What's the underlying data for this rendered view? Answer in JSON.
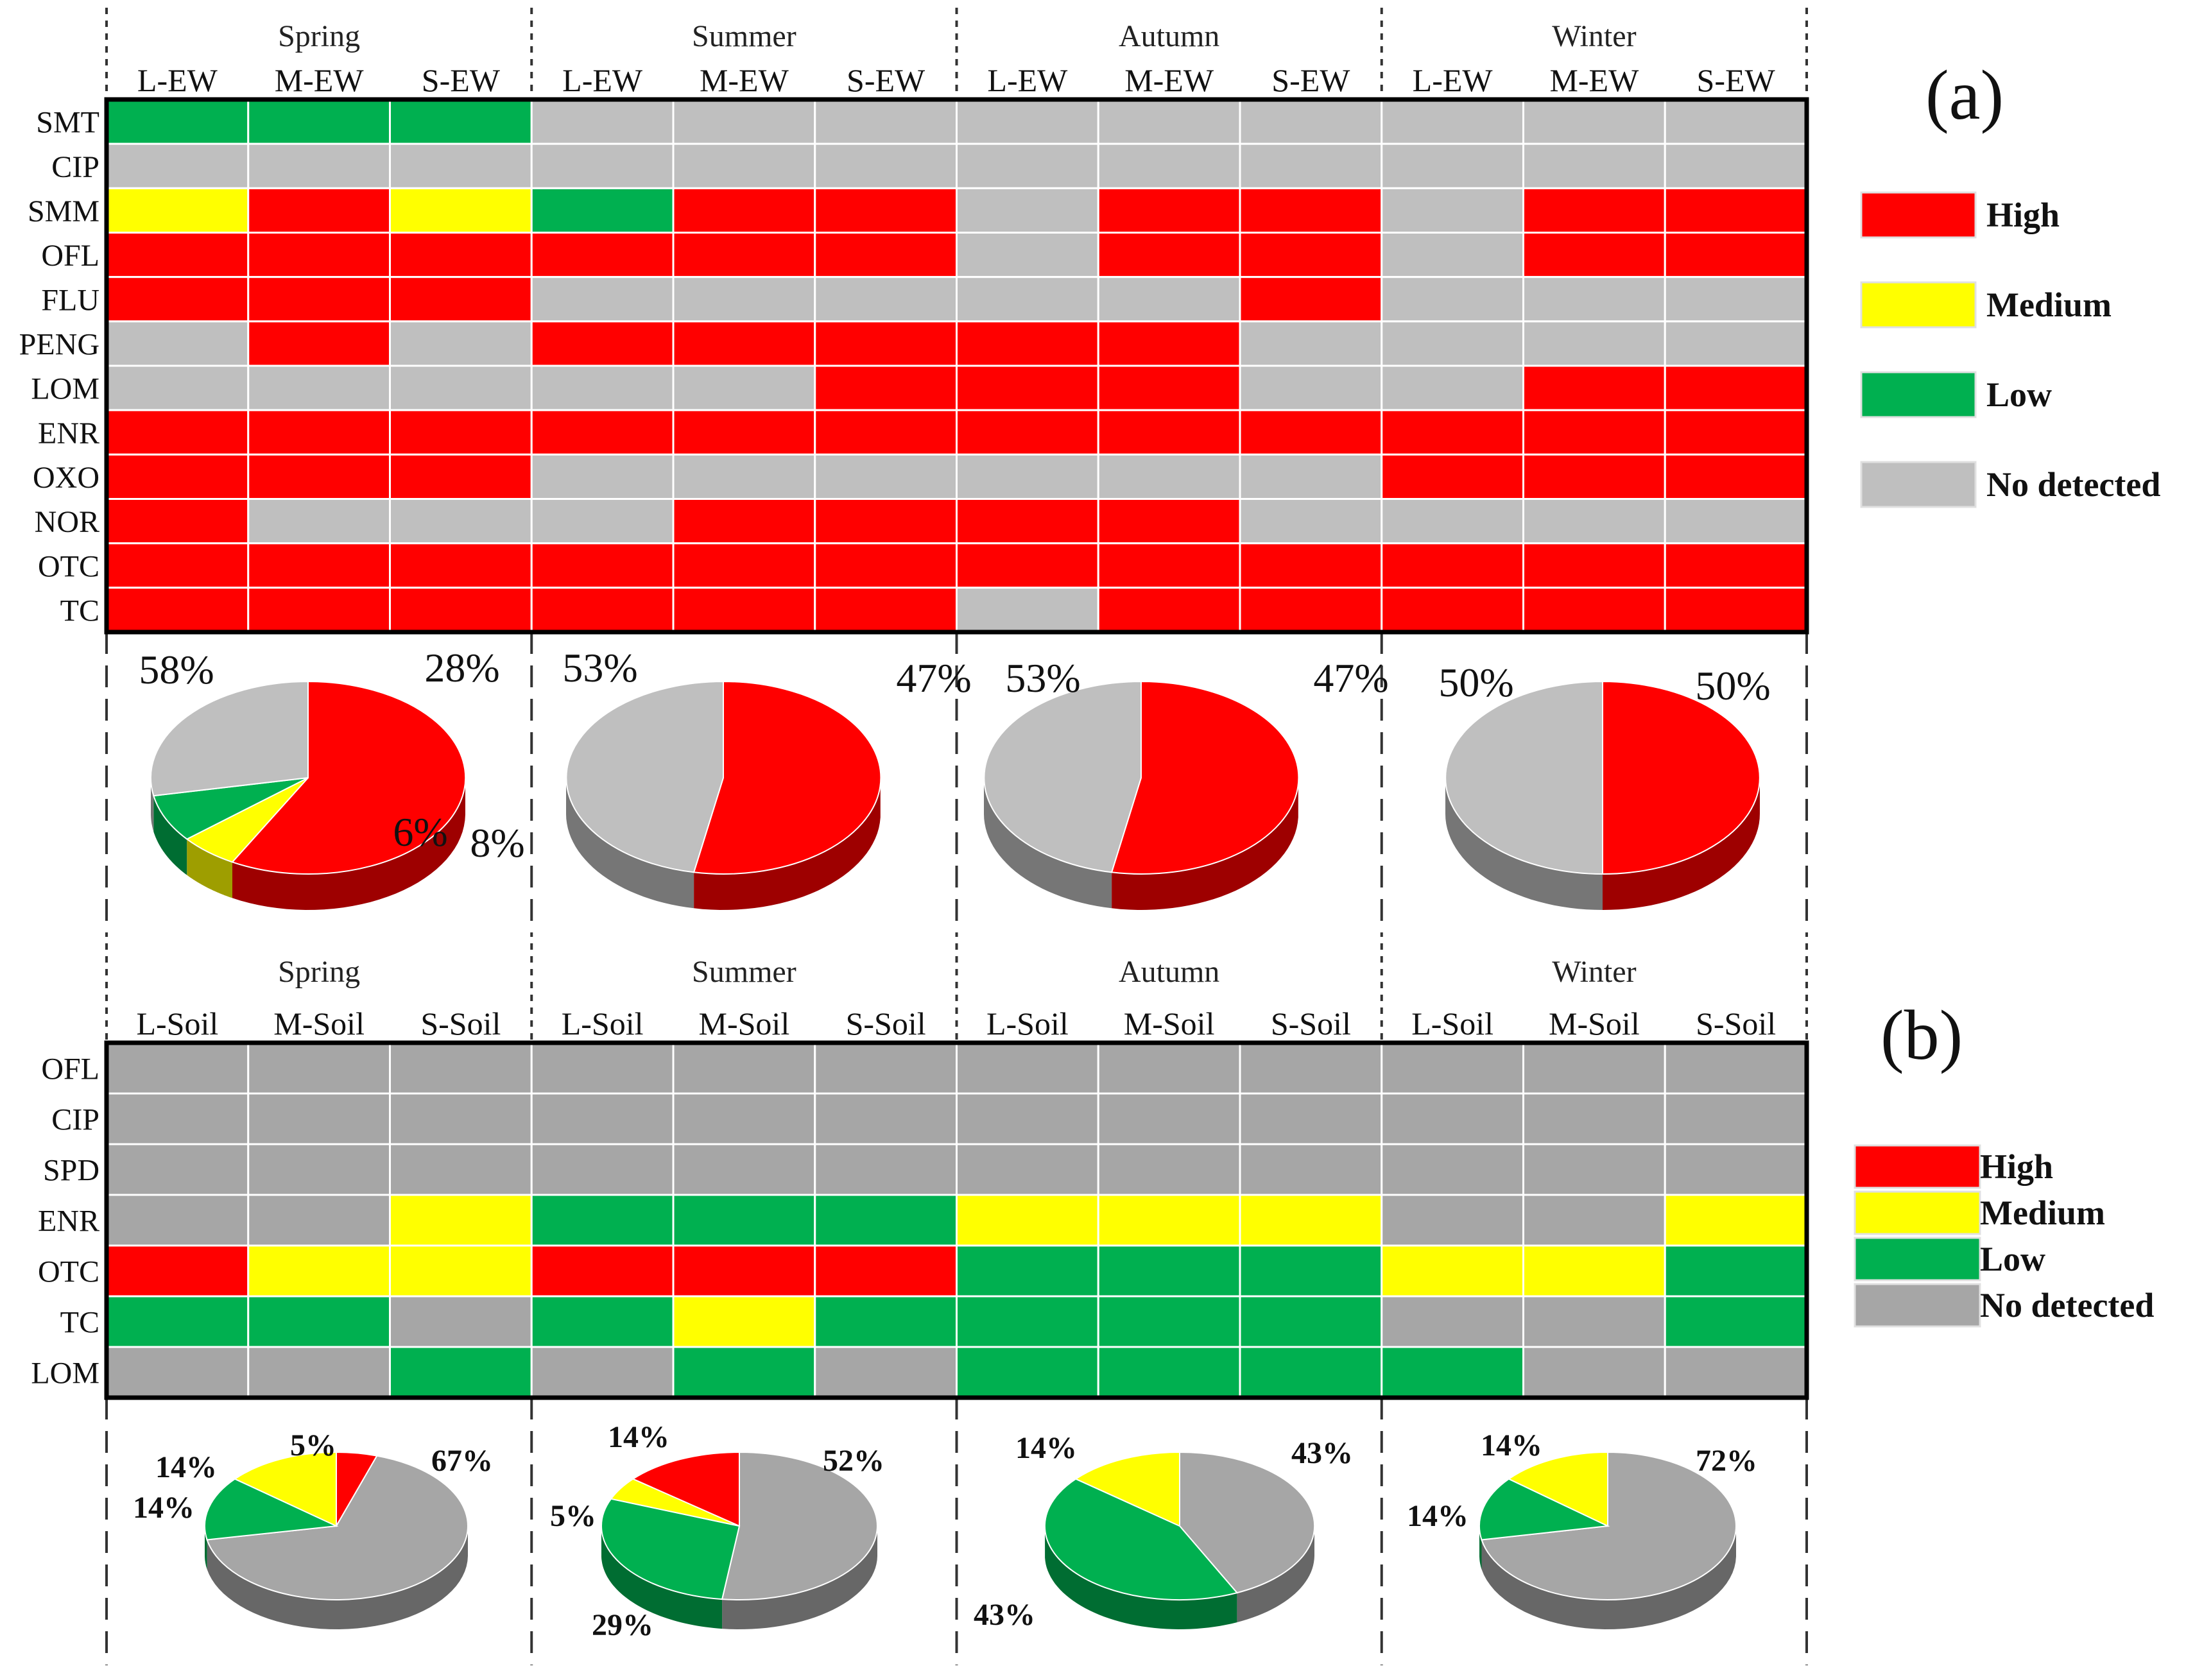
{
  "chart_data": [
    {
      "type": "heatmap",
      "panel_label": "(a)",
      "seasons": [
        "Spring",
        "Summer",
        "Autumn",
        "Winter"
      ],
      "columns": [
        "L-EW",
        "M-EW",
        "S-EW",
        "L-EW",
        "M-EW",
        "S-EW",
        "L-EW",
        "M-EW",
        "S-EW",
        "L-EW",
        "M-EW",
        "S-EW"
      ],
      "rows": [
        "SMT",
        "CIP",
        "SMM",
        "OFL",
        "FLU",
        "PENG",
        "LOM",
        "ENR",
        "OXO",
        "NOR",
        "OTC",
        "TC"
      ],
      "cells": [
        [
          "L",
          "L",
          "L",
          "N",
          "N",
          "N",
          "N",
          "N",
          "N",
          "N",
          "N",
          "N"
        ],
        [
          "N",
          "N",
          "N",
          "N",
          "N",
          "N",
          "N",
          "N",
          "N",
          "N",
          "N",
          "N"
        ],
        [
          "M",
          "H",
          "M",
          "L",
          "H",
          "H",
          "N",
          "H",
          "H",
          "N",
          "H",
          "H"
        ],
        [
          "H",
          "H",
          "H",
          "H",
          "H",
          "H",
          "N",
          "H",
          "H",
          "N",
          "H",
          "H"
        ],
        [
          "H",
          "H",
          "H",
          "N",
          "N",
          "N",
          "N",
          "N",
          "H",
          "N",
          "N",
          "N"
        ],
        [
          "N",
          "H",
          "N",
          "H",
          "H",
          "H",
          "H",
          "H",
          "N",
          "N",
          "N",
          "N"
        ],
        [
          "N",
          "N",
          "N",
          "N",
          "N",
          "H",
          "H",
          "H",
          "N",
          "N",
          "H",
          "H"
        ],
        [
          "H",
          "H",
          "H",
          "H",
          "H",
          "H",
          "H",
          "H",
          "H",
          "H",
          "H",
          "H"
        ],
        [
          "H",
          "H",
          "H",
          "N",
          "N",
          "N",
          "N",
          "N",
          "N",
          "H",
          "H",
          "H"
        ],
        [
          "H",
          "N",
          "N",
          "N",
          "H",
          "H",
          "H",
          "H",
          "N",
          "N",
          "N",
          "N"
        ],
        [
          "H",
          "H",
          "H",
          "H",
          "H",
          "H",
          "H",
          "H",
          "H",
          "H",
          "H",
          "H"
        ],
        [
          "H",
          "H",
          "H",
          "H",
          "H",
          "H",
          "N",
          "H",
          "H",
          "H",
          "H",
          "H"
        ]
      ],
      "legend": [
        {
          "key": "H",
          "label": "High",
          "color": "#ff0000"
        },
        {
          "key": "M",
          "label": "Medium",
          "color": "#ffff00"
        },
        {
          "key": "L",
          "label": "Low",
          "color": "#00b050"
        },
        {
          "key": "N",
          "label": "No detected",
          "color": "#bfbfbf"
        }
      ],
      "pies": [
        {
          "season": "Spring",
          "slices": [
            {
              "key": "H",
              "value": 58,
              "label": "58%"
            },
            {
              "key": "M",
              "value": 6,
              "label": "6%"
            },
            {
              "key": "L",
              "value": 8,
              "label": "8%"
            },
            {
              "key": "N",
              "value": 28,
              "label": "28%"
            }
          ]
        },
        {
          "season": "Summer",
          "slices": [
            {
              "key": "H",
              "value": 53,
              "label": "53%"
            },
            {
              "key": "N",
              "value": 47,
              "label": "47%"
            }
          ]
        },
        {
          "season": "Autumn",
          "slices": [
            {
              "key": "H",
              "value": 53,
              "label": "53%"
            },
            {
              "key": "N",
              "value": 47,
              "label": "47%"
            }
          ]
        },
        {
          "season": "Winter",
          "slices": [
            {
              "key": "H",
              "value": 50,
              "label": "50%"
            },
            {
              "key": "N",
              "value": 50,
              "label": "50%"
            }
          ]
        }
      ]
    },
    {
      "type": "heatmap",
      "panel_label": "(b)",
      "seasons": [
        "Spring",
        "Summer",
        "Autumn",
        "Winter"
      ],
      "columns": [
        "L-Soil",
        "M-Soil",
        "S-Soil",
        "L-Soil",
        "M-Soil",
        "S-Soil",
        "L-Soil",
        "M-Soil",
        "S-Soil",
        "L-Soil",
        "M-Soil",
        "S-Soil"
      ],
      "rows": [
        "OFL",
        "CIP",
        "SPD",
        "ENR",
        "OTC",
        "TC",
        "LOM"
      ],
      "cells": [
        [
          "N",
          "N",
          "N",
          "N",
          "N",
          "N",
          "N",
          "N",
          "N",
          "N",
          "N",
          "N"
        ],
        [
          "N",
          "N",
          "N",
          "N",
          "N",
          "N",
          "N",
          "N",
          "N",
          "N",
          "N",
          "N"
        ],
        [
          "N",
          "N",
          "N",
          "N",
          "N",
          "N",
          "N",
          "N",
          "N",
          "N",
          "N",
          "N"
        ],
        [
          "N",
          "N",
          "M",
          "L",
          "L",
          "L",
          "M",
          "M",
          "M",
          "N",
          "N",
          "M"
        ],
        [
          "H",
          "M",
          "M",
          "H",
          "H",
          "H",
          "L",
          "L",
          "L",
          "M",
          "M",
          "L"
        ],
        [
          "L",
          "L",
          "N",
          "L",
          "M",
          "L",
          "L",
          "L",
          "L",
          "N",
          "N",
          "L"
        ],
        [
          "N",
          "N",
          "L",
          "N",
          "L",
          "N",
          "L",
          "L",
          "L",
          "L",
          "N",
          "N"
        ]
      ],
      "legend": [
        {
          "key": "H",
          "label": "High",
          "color": "#ff0000"
        },
        {
          "key": "M",
          "label": "Medium",
          "color": "#ffff00"
        },
        {
          "key": "L",
          "label": "Low",
          "color": "#00b050"
        },
        {
          "key": "N",
          "label": "No detected",
          "color": "#a6a6a6"
        }
      ],
      "pies": [
        {
          "season": "Spring",
          "slices": [
            {
              "key": "H",
              "value": 5,
              "label": "5%"
            },
            {
              "key": "N",
              "value": 67,
              "label": "67%"
            },
            {
              "key": "L",
              "value": 14,
              "label": "14%"
            },
            {
              "key": "M",
              "value": 14,
              "label": "14%"
            }
          ]
        },
        {
          "season": "Summer",
          "slices": [
            {
              "key": "N",
              "value": 52,
              "label": "52%"
            },
            {
              "key": "L",
              "value": 29,
              "label": "29%"
            },
            {
              "key": "M",
              "value": 5,
              "label": "5%"
            },
            {
              "key": "H",
              "value": 14,
              "label": "14%"
            }
          ]
        },
        {
          "season": "Autumn",
          "slices": [
            {
              "key": "N",
              "value": 43,
              "label": "43%"
            },
            {
              "key": "L",
              "value": 43,
              "label": "43%"
            },
            {
              "key": "M",
              "value": 14,
              "label": "14%"
            }
          ]
        },
        {
          "season": "Winter",
          "slices": [
            {
              "key": "N",
              "value": 72,
              "label": "72%"
            },
            {
              "key": "L",
              "value": 14,
              "label": "14%"
            },
            {
              "key": "M",
              "value": 14,
              "label": "14%"
            }
          ]
        }
      ]
    }
  ]
}
